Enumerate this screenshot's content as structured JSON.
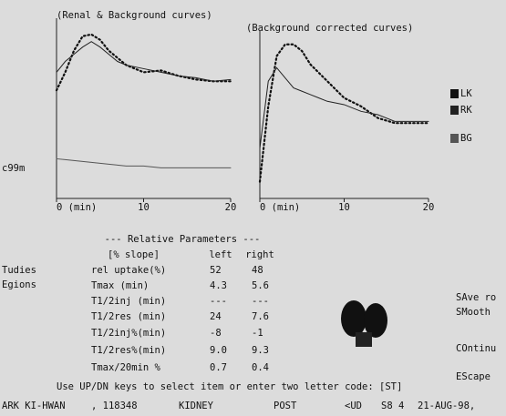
{
  "chart_data": [
    {
      "type": "line",
      "title": "(Renal & Background curves)",
      "x": [
        0,
        1,
        2,
        3,
        4,
        5,
        6,
        7,
        8,
        10,
        12,
        14,
        16,
        18,
        20
      ],
      "series": [
        {
          "name": "LK",
          "color": "#111111",
          "style": "dotted",
          "values": [
            60,
            70,
            82,
            90,
            91,
            88,
            82,
            78,
            74,
            70,
            71,
            68,
            66,
            65,
            65
          ]
        },
        {
          "name": "RK",
          "color": "#222222",
          "style": "solid",
          "values": [
            70,
            76,
            80,
            84,
            87,
            84,
            80,
            76,
            74,
            72,
            70,
            68,
            67,
            65,
            66
          ]
        },
        {
          "name": "BG",
          "color": "#555555",
          "style": "solid",
          "values": [
            22,
            21.5,
            21,
            20.5,
            20,
            19.5,
            19,
            18.5,
            18,
            18,
            17,
            17,
            17,
            17,
            17
          ]
        }
      ],
      "xlim": [
        0,
        20
      ],
      "ylim": [
        0,
        100
      ],
      "xticks": [
        {
          "value": 0,
          "label": "0 (min)"
        },
        10,
        20
      ]
    },
    {
      "type": "line",
      "title": "(Background corrected curves)",
      "x": [
        0,
        1,
        2,
        3,
        4,
        5,
        6,
        7,
        8,
        10,
        12,
        14,
        16,
        18,
        20
      ],
      "series": [
        {
          "name": "LK",
          "color": "#111111",
          "style": "dotted",
          "values": [
            10,
            55,
            85,
            92,
            92,
            88,
            80,
            75,
            70,
            60,
            55,
            48,
            45,
            45,
            45
          ]
        },
        {
          "name": "RK",
          "color": "#222222",
          "style": "solid",
          "values": [
            30,
            70,
            78,
            72,
            66,
            64,
            62,
            60,
            58,
            56,
            52,
            50,
            46,
            46,
            46
          ]
        }
      ],
      "xlim": [
        0,
        20
      ],
      "ylim": [
        0,
        100
      ],
      "xticks": [
        {
          "value": 0,
          "label": "0 (min)"
        },
        10,
        20
      ]
    }
  ],
  "side_labels": [
    "c99m",
    "Tudies",
    "Egions"
  ],
  "table": {
    "title": "--- Relative Parameters ---",
    "header": [
      "[% slope]",
      "left",
      "right"
    ],
    "rows": [
      [
        "rel uptake(%)",
        "52",
        "48"
      ],
      [
        "Tmax (min)",
        "4.3",
        "5.6"
      ],
      [
        "T1/2inj (min)",
        "---",
        "---"
      ],
      [
        "T1/2res (min)",
        "24",
        "7.6"
      ],
      [
        "T1/2inj%(min)",
        "-8",
        "-1"
      ],
      [
        "T1/2res%(min)",
        "9.0",
        "9.3"
      ],
      [
        "Tmax/20min %",
        "0.7",
        "0.4"
      ]
    ]
  },
  "menu": [
    "SAve ro",
    "SMooth",
    "COntinu",
    "EScape"
  ],
  "prompt": "Use UP/DN keys to select item or enter two letter code: [ST]",
  "status": [
    "ARK KI-HWAN",
    ", 118348",
    "KIDNEY",
    "POST",
    "<UD",
    "S8 4",
    "21-AUG-98,"
  ]
}
